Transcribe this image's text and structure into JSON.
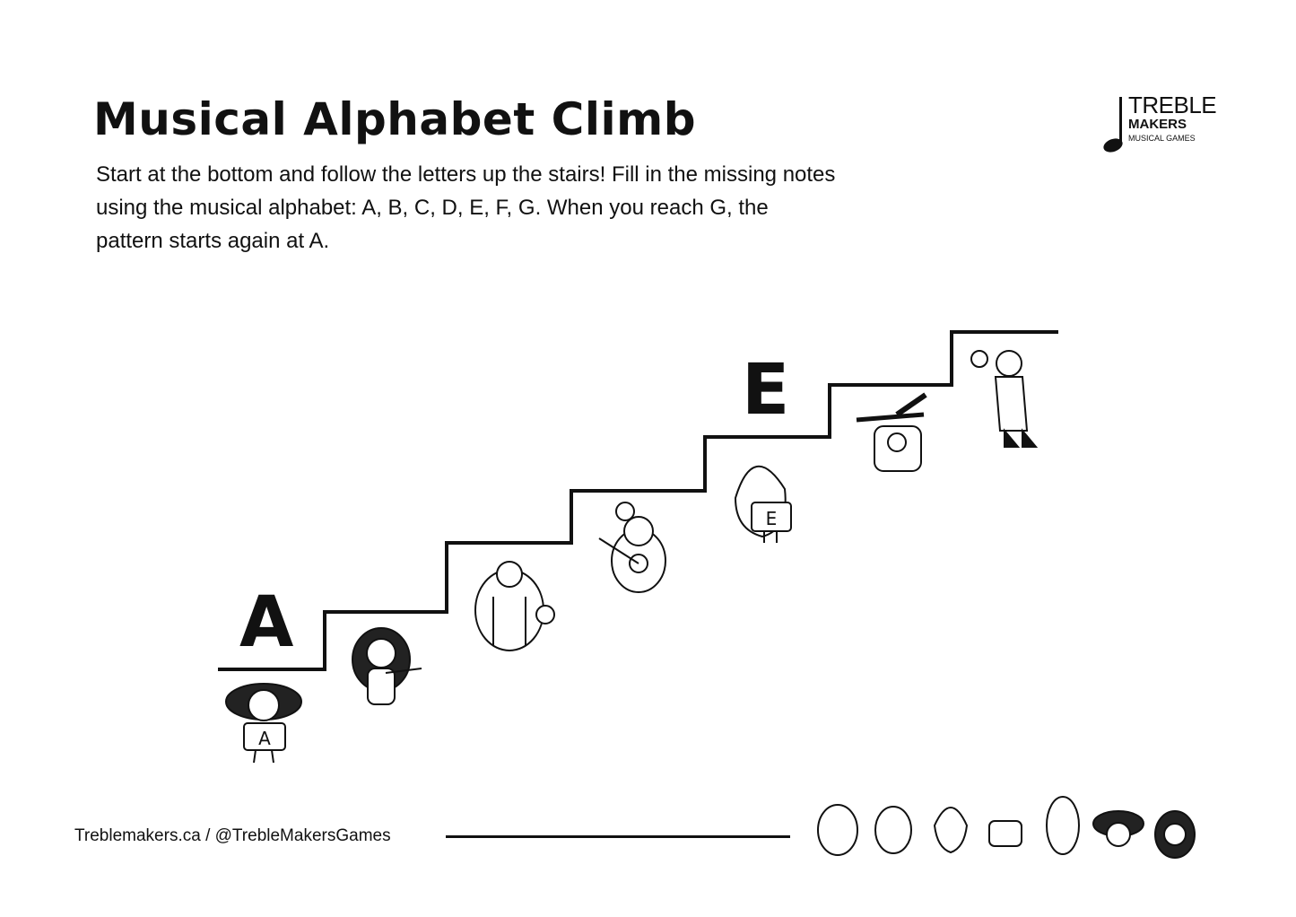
{
  "title": "Musical Alphabet Climb",
  "instructions": "Start at the bottom and follow the letters up the stairs! Fill in the missing notes using the musical alphabet: A, B, C, D, E, F, G. When you reach G, the pattern starts again at A.",
  "logo": {
    "line1": "TREBLE",
    "line2": "MAKERS",
    "line3": "MUSICAL GAMES"
  },
  "stairs": {
    "steps": [
      {
        "letter": "A"
      },
      {
        "letter": ""
      },
      {
        "letter": ""
      },
      {
        "letter": ""
      },
      {
        "letter": "E"
      },
      {
        "letter": ""
      },
      {
        "letter": ""
      }
    ]
  },
  "character_badges": [
    "A",
    "E"
  ],
  "footer": {
    "text": "Treblemakers.ca / @TrebleMakersGames"
  }
}
